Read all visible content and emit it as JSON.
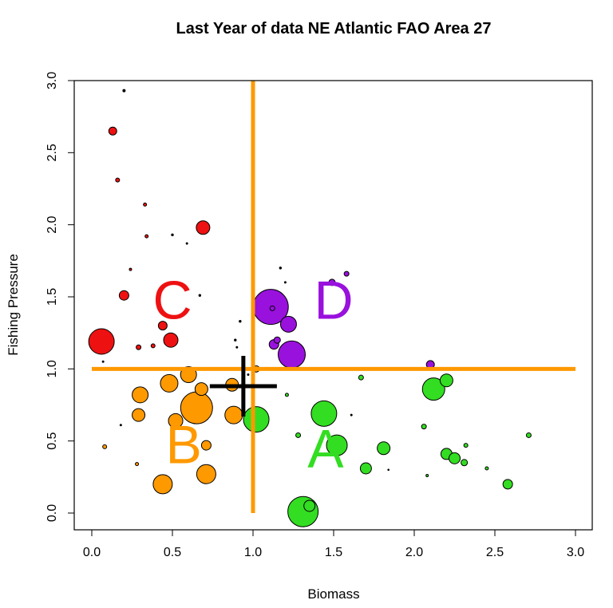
{
  "chart_data": {
    "type": "scatter",
    "title": "Last Year of data NE Atlantic FAO Area 27",
    "xlabel": "Biomass",
    "ylabel": "Fishing Pressure",
    "xlim": [
      0,
      3
    ],
    "ylim": [
      0,
      3
    ],
    "xticks": [
      "0.0",
      "0.5",
      "1.0",
      "1.5",
      "2.0",
      "2.5",
      "3.0"
    ],
    "yticks": [
      "0.0",
      "0.5",
      "1.0",
      "1.5",
      "2.0",
      "2.5",
      "3.0"
    ],
    "reference_lines": {
      "x": 1.0,
      "y": 1.0,
      "color": "#FF9900"
    },
    "crosshair": {
      "x": 0.94,
      "y": 0.88,
      "color": "#000000"
    },
    "quadrant_labels": [
      {
        "text": "A",
        "x": 1.45,
        "y": 0.45,
        "color": "#33DD22"
      },
      {
        "text": "B",
        "x": 0.57,
        "y": 0.48,
        "color": "#FF9900"
      },
      {
        "text": "C",
        "x": 0.5,
        "y": 1.48,
        "color": "#EE1111"
      },
      {
        "text": "D",
        "x": 1.5,
        "y": 1.48,
        "color": "#9911DD"
      }
    ],
    "series": [
      {
        "group": "C",
        "color": "#EE1111",
        "points": [
          {
            "x": 0.06,
            "y": 1.19,
            "size": 16
          },
          {
            "x": 0.13,
            "y": 2.65,
            "size": 5
          },
          {
            "x": 0.16,
            "y": 2.31,
            "size": 2.5
          },
          {
            "x": 0.2,
            "y": 1.51,
            "size": 6
          },
          {
            "x": 0.33,
            "y": 2.14,
            "size": 2
          },
          {
            "x": 0.34,
            "y": 1.92,
            "size": 2
          },
          {
            "x": 0.38,
            "y": 1.16,
            "size": 2.5
          },
          {
            "x": 0.29,
            "y": 1.15,
            "size": 3
          },
          {
            "x": 0.44,
            "y": 1.3,
            "size": 5.5
          },
          {
            "x": 0.49,
            "y": 1.2,
            "size": 9
          },
          {
            "x": 0.69,
            "y": 1.98,
            "size": 8.5
          },
          {
            "x": 0.24,
            "y": 1.69,
            "size": 1.5
          }
        ]
      },
      {
        "group": "D",
        "color": "#9911DD",
        "points": [
          {
            "x": 1.11,
            "y": 1.43,
            "size": 22
          },
          {
            "x": 1.12,
            "y": 1.42,
            "size": 3
          },
          {
            "x": 1.22,
            "y": 1.31,
            "size": 10
          },
          {
            "x": 1.24,
            "y": 1.1,
            "size": 17
          },
          {
            "x": 1.13,
            "y": 1.17,
            "size": 6
          },
          {
            "x": 1.15,
            "y": 1.2,
            "size": 4
          },
          {
            "x": 1.49,
            "y": 1.6,
            "size": 4
          },
          {
            "x": 1.58,
            "y": 1.66,
            "size": 3
          },
          {
            "x": 2.1,
            "y": 1.03,
            "size": 5
          }
        ]
      },
      {
        "group": "B",
        "color": "#FF9900",
        "points": [
          {
            "x": 0.08,
            "y": 0.46,
            "size": 2.5
          },
          {
            "x": 0.28,
            "y": 0.34,
            "size": 2
          },
          {
            "x": 0.3,
            "y": 0.82,
            "size": 10
          },
          {
            "x": 0.29,
            "y": 0.68,
            "size": 8
          },
          {
            "x": 0.44,
            "y": 0.2,
            "size": 12
          },
          {
            "x": 0.48,
            "y": 0.9,
            "size": 11
          },
          {
            "x": 0.52,
            "y": 0.64,
            "size": 9
          },
          {
            "x": 0.6,
            "y": 0.96,
            "size": 10
          },
          {
            "x": 0.65,
            "y": 0.73,
            "size": 20
          },
          {
            "x": 0.68,
            "y": 0.86,
            "size": 8
          },
          {
            "x": 0.71,
            "y": 0.47,
            "size": 6
          },
          {
            "x": 0.71,
            "y": 0.27,
            "size": 12
          },
          {
            "x": 0.87,
            "y": 0.89,
            "size": 8
          },
          {
            "x": 0.88,
            "y": 0.68,
            "size": 11
          },
          {
            "x": 1.02,
            "y": 1.0,
            "size": 4
          }
        ]
      },
      {
        "group": "A",
        "color": "#33DD22",
        "points": [
          {
            "x": 1.02,
            "y": 0.65,
            "size": 16
          },
          {
            "x": 1.21,
            "y": 0.82,
            "size": 2
          },
          {
            "x": 1.28,
            "y": 0.54,
            "size": 3
          },
          {
            "x": 1.31,
            "y": 0.01,
            "size": 19
          },
          {
            "x": 1.35,
            "y": 0.05,
            "size": 7
          },
          {
            "x": 1.44,
            "y": 0.69,
            "size": 16
          },
          {
            "x": 1.52,
            "y": 0.47,
            "size": 13
          },
          {
            "x": 1.67,
            "y": 0.94,
            "size": 3
          },
          {
            "x": 1.7,
            "y": 0.31,
            "size": 7
          },
          {
            "x": 1.81,
            "y": 0.45,
            "size": 8
          },
          {
            "x": 2.06,
            "y": 0.6,
            "size": 3
          },
          {
            "x": 2.12,
            "y": 0.86,
            "size": 14
          },
          {
            "x": 2.2,
            "y": 0.92,
            "size": 8
          },
          {
            "x": 2.2,
            "y": 0.41,
            "size": 7
          },
          {
            "x": 2.25,
            "y": 0.38,
            "size": 7
          },
          {
            "x": 2.31,
            "y": 0.35,
            "size": 4
          },
          {
            "x": 2.32,
            "y": 0.47,
            "size": 2.5
          },
          {
            "x": 2.45,
            "y": 0.31,
            "size": 2
          },
          {
            "x": 2.58,
            "y": 0.2,
            "size": 6
          },
          {
            "x": 2.71,
            "y": 0.54,
            "size": 3
          },
          {
            "x": 2.08,
            "y": 0.26,
            "size": 1.5
          }
        ]
      },
      {
        "group": "black",
        "color": "#000000",
        "points": [
          {
            "x": 0.2,
            "y": 2.93,
            "size": 1.5
          },
          {
            "x": 0.5,
            "y": 1.93,
            "size": 1.2
          },
          {
            "x": 0.59,
            "y": 1.87,
            "size": 1
          },
          {
            "x": 0.67,
            "y": 1.51,
            "size": 1.2
          },
          {
            "x": 0.92,
            "y": 1.33,
            "size": 1.2
          },
          {
            "x": 0.89,
            "y": 1.2,
            "size": 1.2
          },
          {
            "x": 0.9,
            "y": 1.15,
            "size": 1
          },
          {
            "x": 1.17,
            "y": 1.7,
            "size": 1.2
          },
          {
            "x": 1.2,
            "y": 1.6,
            "size": 1
          },
          {
            "x": 1.61,
            "y": 0.68,
            "size": 1
          },
          {
            "x": 1.84,
            "y": 0.3,
            "size": 0.8
          },
          {
            "x": 0.18,
            "y": 0.61,
            "size": 1
          },
          {
            "x": 0.07,
            "y": 1.05,
            "size": 1
          },
          {
            "x": 0.97,
            "y": 0.96,
            "size": 1
          }
        ]
      }
    ]
  }
}
